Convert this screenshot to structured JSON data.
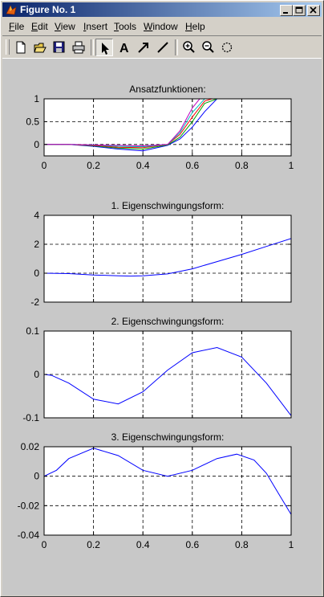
{
  "window": {
    "title": "Figure No. 1"
  },
  "menu": [
    {
      "u": "F",
      "rest": "ile"
    },
    {
      "u": "E",
      "rest": "dit"
    },
    {
      "u": "V",
      "rest": "iew"
    },
    {
      "u": "I",
      "rest": "nsert"
    },
    {
      "u": "T",
      "rest": "ools"
    },
    {
      "u": "W",
      "rest": "indow"
    },
    {
      "u": "H",
      "rest": "elp"
    }
  ],
  "toolbar": [
    "new-file",
    "open-file",
    "save",
    "print",
    "select-arrow",
    "insert-text",
    "insert-arrow",
    "insert-line",
    "zoom-in",
    "zoom-out",
    "rotate"
  ],
  "chart_data": [
    {
      "type": "line",
      "title": "Ansatzfunktionen:",
      "xlim": [
        0,
        1
      ],
      "ylim": [
        -0.25,
        1
      ],
      "xticks": [
        0,
        0.2,
        0.4,
        0.6,
        0.8,
        1
      ],
      "yticks": [
        0,
        0.5,
        1
      ],
      "xtick_labels": [
        "0",
        "0.2",
        "0.4",
        "0.6",
        "0.8",
        "1"
      ],
      "ytick_labels": [
        "0",
        "0.5",
        "1"
      ],
      "grid": "dashed",
      "series": [
        {
          "color": "#0000ff",
          "x": [
            0,
            0.1,
            0.2,
            0.3,
            0.4,
            0.5,
            0.55,
            0.6,
            0.65,
            0.7,
            0.75
          ],
          "y": [
            0,
            0,
            -0.04,
            -0.1,
            -0.14,
            -0.02,
            0.12,
            0.38,
            0.72,
            1.0,
            1.0
          ]
        },
        {
          "color": "#00a000",
          "x": [
            0,
            0.1,
            0.2,
            0.3,
            0.4,
            0.5,
            0.55,
            0.6,
            0.65,
            0.7
          ],
          "y": [
            0,
            0,
            -0.03,
            -0.08,
            -0.1,
            -0.01,
            0.16,
            0.5,
            0.9,
            1.0
          ]
        },
        {
          "color": "#ff0000",
          "x": [
            0,
            0.1,
            0.2,
            0.3,
            0.4,
            0.5,
            0.55,
            0.6,
            0.65,
            0.68
          ],
          "y": [
            0,
            0,
            -0.02,
            -0.06,
            -0.07,
            0,
            0.22,
            0.6,
            0.95,
            1.0
          ]
        },
        {
          "color": "#00bfbf",
          "x": [
            0,
            0.1,
            0.2,
            0.3,
            0.4,
            0.5,
            0.55,
            0.6,
            0.65
          ],
          "y": [
            0,
            0,
            -0.01,
            -0.04,
            -0.05,
            0,
            0.26,
            0.7,
            1.0
          ]
        },
        {
          "color": "#bf00bf",
          "x": [
            0,
            0.1,
            0.2,
            0.3,
            0.4,
            0.5,
            0.55,
            0.6,
            0.63
          ],
          "y": [
            0,
            0,
            -0.01,
            -0.02,
            -0.03,
            0,
            0.3,
            0.8,
            1.0
          ]
        }
      ]
    },
    {
      "type": "line",
      "title": "1. Eigenschwingungsform:",
      "xlim": [
        0,
        1
      ],
      "ylim": [
        -2,
        4
      ],
      "xticks": [
        0,
        0.2,
        0.4,
        0.6,
        0.8,
        1
      ],
      "yticks": [
        -2,
        0,
        2,
        4
      ],
      "xtick_labels": [],
      "ytick_labels": [
        "-2",
        "0",
        "2",
        "4"
      ],
      "grid": "dashed",
      "series": [
        {
          "color": "#0000ff",
          "x": [
            0,
            0.1,
            0.2,
            0.3,
            0.35,
            0.4,
            0.5,
            0.6,
            0.7,
            0.8,
            0.9,
            1.0
          ],
          "y": [
            0,
            -0.03,
            -0.12,
            -0.18,
            -0.2,
            -0.18,
            -0.05,
            0.3,
            0.8,
            1.3,
            1.85,
            2.4
          ]
        }
      ]
    },
    {
      "type": "line",
      "title": "2. Eigenschwingungsform:",
      "xlim": [
        0,
        1
      ],
      "ylim": [
        -0.1,
        0.1
      ],
      "xticks": [
        0,
        0.2,
        0.4,
        0.6,
        0.8,
        1
      ],
      "yticks": [
        -0.1,
        0,
        0.1
      ],
      "xtick_labels": [],
      "ytick_labels": [
        "-0.1",
        "0",
        "0.1"
      ],
      "grid": "dashed",
      "series": [
        {
          "color": "#0000ff",
          "x": [
            0,
            0.03,
            0.1,
            0.2,
            0.3,
            0.4,
            0.5,
            0.6,
            0.7,
            0.8,
            0.9,
            1.0
          ],
          "y": [
            0,
            -0.002,
            -0.02,
            -0.057,
            -0.068,
            -0.04,
            0.01,
            0.05,
            0.062,
            0.04,
            -0.02,
            -0.095
          ]
        }
      ]
    },
    {
      "type": "line",
      "title": "3. Eigenschwingungsform:",
      "xlim": [
        0,
        1
      ],
      "ylim": [
        -0.04,
        0.02
      ],
      "xticks": [
        0,
        0.2,
        0.4,
        0.6,
        0.8,
        1
      ],
      "yticks": [
        -0.04,
        -0.02,
        0,
        0.02
      ],
      "xtick_labels": [
        "0",
        "0.2",
        "0.4",
        "0.6",
        "0.8",
        "1"
      ],
      "ytick_labels": [
        "-0.04",
        "-0.02",
        "0",
        "0.02"
      ],
      "grid": "dashed",
      "series": [
        {
          "color": "#0000ff",
          "x": [
            0,
            0.05,
            0.1,
            0.2,
            0.3,
            0.4,
            0.5,
            0.6,
            0.7,
            0.78,
            0.85,
            0.9,
            0.95,
            1.0
          ],
          "y": [
            0,
            0.004,
            0.012,
            0.019,
            0.014,
            0.004,
            0,
            0.004,
            0.012,
            0.015,
            0.011,
            0.002,
            -0.012,
            -0.026
          ]
        }
      ]
    }
  ]
}
